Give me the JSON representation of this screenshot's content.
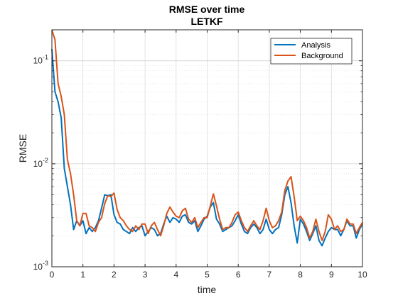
{
  "chart_data": {
    "type": "line",
    "title": "RMSE over time",
    "subtitle": "LETKF",
    "xlabel": "time",
    "ylabel": "RMSE",
    "xlim": [
      0,
      10
    ],
    "ylim": [
      0.001,
      0.2
    ],
    "yscale": "log",
    "grid": true,
    "minor_grid": true,
    "legend_location": "top-right",
    "x_ticks": [
      "0",
      "1",
      "2",
      "3",
      "4",
      "5",
      "6",
      "7",
      "8",
      "9",
      "10"
    ],
    "y_ticks": [
      {
        "base": "10",
        "exp": "-3",
        "value": 0.001
      },
      {
        "base": "10",
        "exp": "-2",
        "value": 0.01
      },
      {
        "base": "10",
        "exp": "-1",
        "value": 0.1
      }
    ],
    "series": [
      {
        "name": "Analysis",
        "color": "#0072BD",
        "x": [
          0,
          0.1,
          0.2,
          0.3,
          0.4,
          0.5,
          0.6,
          0.7,
          0.8,
          0.9,
          1.0,
          1.1,
          1.2,
          1.3,
          1.4,
          1.5,
          1.6,
          1.7,
          1.8,
          1.9,
          2.0,
          2.1,
          2.2,
          2.3,
          2.4,
          2.5,
          2.6,
          2.7,
          2.8,
          2.9,
          3.0,
          3.1,
          3.2,
          3.3,
          3.4,
          3.5,
          3.6,
          3.7,
          3.8,
          3.9,
          4.0,
          4.1,
          4.2,
          4.3,
          4.4,
          4.5,
          4.6,
          4.7,
          4.8,
          4.9,
          5.0,
          5.1,
          5.2,
          5.3,
          5.4,
          5.5,
          5.6,
          5.7,
          5.8,
          5.9,
          6.0,
          6.1,
          6.2,
          6.3,
          6.4,
          6.5,
          6.6,
          6.7,
          6.8,
          6.9,
          7.0,
          7.1,
          7.2,
          7.3,
          7.4,
          7.5,
          7.6,
          7.7,
          7.8,
          7.9,
          8.0,
          8.1,
          8.2,
          8.3,
          8.4,
          8.5,
          8.6,
          8.7,
          8.8,
          8.9,
          9.0,
          9.1,
          9.2,
          9.3,
          9.4,
          9.5,
          9.6,
          9.7,
          9.8,
          9.9,
          10.0
        ],
        "values": [
          0.13,
          0.05,
          0.04,
          0.028,
          0.009,
          0.006,
          0.004,
          0.0023,
          0.0028,
          0.0025,
          0.0028,
          0.0021,
          0.0024,
          0.0022,
          0.0024,
          0.0028,
          0.0037,
          0.005,
          0.0049,
          0.005,
          0.0032,
          0.0027,
          0.0026,
          0.0023,
          0.0022,
          0.0021,
          0.0024,
          0.0022,
          0.0024,
          0.0025,
          0.002,
          0.0022,
          0.0024,
          0.0023,
          0.002,
          0.0021,
          0.0026,
          0.0031,
          0.0027,
          0.003,
          0.0029,
          0.0027,
          0.0031,
          0.0032,
          0.0027,
          0.0026,
          0.0028,
          0.0022,
          0.0025,
          0.0029,
          0.0031,
          0.0038,
          0.0042,
          0.0029,
          0.0026,
          0.0022,
          0.0023,
          0.0024,
          0.0025,
          0.0028,
          0.0032,
          0.0026,
          0.0022,
          0.0021,
          0.0024,
          0.0026,
          0.0024,
          0.0021,
          0.0023,
          0.0029,
          0.0023,
          0.0021,
          0.0023,
          0.0024,
          0.0032,
          0.005,
          0.006,
          0.0042,
          0.0025,
          0.0017,
          0.0029,
          0.0026,
          0.0022,
          0.0018,
          0.0021,
          0.0025,
          0.0018,
          0.0016,
          0.0019,
          0.0022,
          0.0024,
          0.0023,
          0.0023,
          0.002,
          0.0023,
          0.0028,
          0.0025,
          0.0025,
          0.0019,
          0.0023,
          0.0026
        ]
      },
      {
        "name": "Background",
        "color": "#D95319",
        "x": [
          0,
          0.1,
          0.2,
          0.3,
          0.4,
          0.5,
          0.6,
          0.7,
          0.8,
          0.9,
          1.0,
          1.1,
          1.2,
          1.3,
          1.4,
          1.5,
          1.6,
          1.7,
          1.8,
          1.9,
          2.0,
          2.1,
          2.2,
          2.3,
          2.4,
          2.5,
          2.6,
          2.7,
          2.8,
          2.9,
          3.0,
          3.1,
          3.2,
          3.3,
          3.4,
          3.5,
          3.6,
          3.7,
          3.8,
          3.9,
          4.0,
          4.1,
          4.2,
          4.3,
          4.4,
          4.5,
          4.6,
          4.7,
          4.8,
          4.9,
          5.0,
          5.1,
          5.2,
          5.3,
          5.4,
          5.5,
          5.6,
          5.7,
          5.8,
          5.9,
          6.0,
          6.1,
          6.2,
          6.3,
          6.4,
          6.5,
          6.6,
          6.7,
          6.8,
          6.9,
          7.0,
          7.1,
          7.2,
          7.3,
          7.4,
          7.5,
          7.6,
          7.7,
          7.8,
          7.9,
          8.0,
          8.1,
          8.2,
          8.3,
          8.4,
          8.5,
          8.6,
          8.7,
          8.8,
          8.9,
          9.0,
          9.1,
          9.2,
          9.3,
          9.4,
          9.5,
          9.6,
          9.7,
          9.8,
          9.9,
          10.0
        ],
        "values": [
          0.2,
          0.16,
          0.06,
          0.045,
          0.03,
          0.011,
          0.008,
          0.005,
          0.0028,
          0.0025,
          0.0033,
          0.0033,
          0.0025,
          0.0024,
          0.0022,
          0.0027,
          0.003,
          0.0041,
          0.0049,
          0.0048,
          0.0052,
          0.0036,
          0.003,
          0.0028,
          0.0025,
          0.0023,
          0.0022,
          0.0025,
          0.0023,
          0.0026,
          0.0026,
          0.0021,
          0.0025,
          0.0027,
          0.0023,
          0.002,
          0.0025,
          0.0033,
          0.0038,
          0.0034,
          0.0031,
          0.003,
          0.0035,
          0.0037,
          0.0029,
          0.0027,
          0.003,
          0.0024,
          0.0027,
          0.003,
          0.003,
          0.0039,
          0.0051,
          0.0039,
          0.0029,
          0.0023,
          0.0024,
          0.0024,
          0.0027,
          0.0032,
          0.0034,
          0.0028,
          0.0024,
          0.0022,
          0.0025,
          0.0028,
          0.0025,
          0.0023,
          0.0028,
          0.0037,
          0.0028,
          0.0024,
          0.0025,
          0.0028,
          0.0034,
          0.0055,
          0.0068,
          0.0075,
          0.0048,
          0.0028,
          0.0031,
          0.0028,
          0.0024,
          0.0019,
          0.0022,
          0.0029,
          0.0022,
          0.0018,
          0.0022,
          0.0032,
          0.0029,
          0.0023,
          0.0025,
          0.0022,
          0.0023,
          0.0029,
          0.0026,
          0.0026,
          0.0021,
          0.0024,
          0.0027
        ]
      }
    ]
  }
}
